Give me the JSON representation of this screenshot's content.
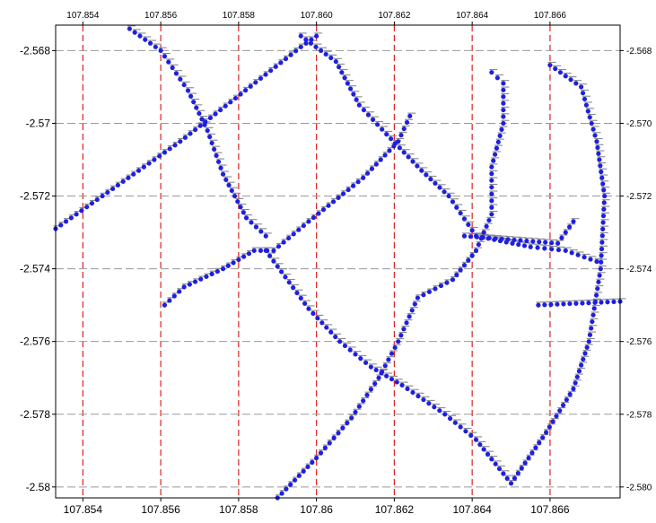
{
  "chart_data": {
    "type": "scatter",
    "title": "",
    "xlabel": "",
    "ylabel": "",
    "xlim": [
      107.8533,
      107.8678
    ],
    "ylim": [
      -2.5803,
      -2.5673
    ],
    "grid": {
      "vertical": true,
      "horizontal": true,
      "vertical_color": "#dd2222",
      "horizontal_color": "#999999"
    },
    "point_color": "#1f1fe0",
    "errorbar_color": "#888888",
    "x_ticks": [
      107.854,
      107.856,
      107.858,
      107.86,
      107.862,
      107.864,
      107.866
    ],
    "x_tick_labels_bottom": [
      "107.854",
      "107.856",
      "107.858",
      "107.86",
      "107.862",
      "107.864",
      "107.866"
    ],
    "x_tick_labels_top": [
      "107.854",
      "107.856",
      "107.858",
      "107.860",
      "107.862",
      "107.864",
      "107.866"
    ],
    "y_ticks": [
      -2.568,
      -2.57,
      -2.572,
      -2.574,
      -2.576,
      -2.578,
      -2.58
    ],
    "y_tick_labels_left": [
      "-2.568",
      "-2.57",
      "-2.572",
      "-2.574",
      "-2.576",
      "-2.578",
      "-2.58"
    ],
    "y_tick_labels_right": [
      "-2.568",
      "-2.570",
      "-2.572",
      "-2.574",
      "-2.576",
      "-2.578",
      "-2.580"
    ],
    "tracks": [
      {
        "id": "t1",
        "points": [
          [
            107.8533,
            -2.5729
          ],
          [
            107.8565,
            -2.5705
          ],
          [
            107.8596,
            -2.5679
          ],
          [
            107.86,
            -2.5676
          ]
        ]
      },
      {
        "id": "t2",
        "points": [
          [
            107.8552,
            -2.5674
          ],
          [
            107.856,
            -2.568
          ],
          [
            107.8567,
            -2.5691
          ],
          [
            107.8572,
            -2.5702
          ],
          [
            107.8576,
            -2.5714
          ],
          [
            107.8582,
            -2.5726
          ],
          [
            107.8587,
            -2.5731
          ]
        ]
      },
      {
        "id": "t3",
        "points": [
          [
            107.8561,
            -2.575
          ],
          [
            107.8566,
            -2.5745
          ],
          [
            107.8576,
            -2.574
          ],
          [
            107.8584,
            -2.5735
          ],
          [
            107.8589,
            -2.5735
          ],
          [
            107.8598,
            -2.5727
          ],
          [
            107.8612,
            -2.5715
          ],
          [
            107.8621,
            -2.5705
          ],
          [
            107.8624,
            -2.5698
          ]
        ]
      },
      {
        "id": "t4",
        "points": [
          [
            107.8587,
            -2.5735
          ],
          [
            107.8598,
            -2.5751
          ],
          [
            107.8606,
            -2.576
          ],
          [
            107.8614,
            -2.5767
          ],
          [
            107.8622,
            -2.5772
          ],
          [
            107.8633,
            -2.578
          ],
          [
            107.8641,
            -2.5787
          ],
          [
            107.865,
            -2.5799
          ],
          [
            107.8659,
            -2.5785
          ],
          [
            107.8666,
            -2.5773
          ],
          [
            107.867,
            -2.576
          ],
          [
            107.8673,
            -2.574
          ],
          [
            107.8674,
            -2.572
          ],
          [
            107.8672,
            -2.5705
          ],
          [
            107.8668,
            -2.569
          ],
          [
            107.866,
            -2.5684
          ]
        ]
      },
      {
        "id": "t5",
        "points": [
          [
            107.859,
            -2.5803
          ],
          [
            107.86,
            -2.5792
          ],
          [
            107.8609,
            -2.5781
          ],
          [
            107.8616,
            -2.577
          ],
          [
            107.8621,
            -2.576
          ],
          [
            107.8626,
            -2.5748
          ],
          [
            107.8635,
            -2.5743
          ],
          [
            107.8641,
            -2.5735
          ],
          [
            107.8645,
            -2.5725
          ],
          [
            107.8645,
            -2.5712
          ],
          [
            107.8648,
            -2.57
          ],
          [
            107.8648,
            -2.5689
          ],
          [
            107.8645,
            -2.5686
          ]
        ]
      },
      {
        "id": "t6",
        "points": [
          [
            107.8596,
            -2.5676
          ],
          [
            107.8605,
            -2.5683
          ],
          [
            107.8611,
            -2.5695
          ],
          [
            107.8618,
            -2.5703
          ],
          [
            107.8627,
            -2.5713
          ],
          [
            107.8634,
            -2.572
          ],
          [
            107.8641,
            -2.5731
          ],
          [
            107.8655,
            -2.5734
          ],
          [
            107.8664,
            -2.5735
          ],
          [
            107.8672,
            -2.5738
          ]
        ]
      },
      {
        "id": "t7",
        "points": [
          [
            107.8638,
            -2.5731
          ],
          [
            107.8662,
            -2.5733
          ],
          [
            107.8666,
            -2.5727
          ]
        ]
      },
      {
        "id": "t8",
        "points": [
          [
            107.8657,
            -2.575
          ],
          [
            107.8678,
            -2.5749
          ]
        ]
      }
    ]
  }
}
